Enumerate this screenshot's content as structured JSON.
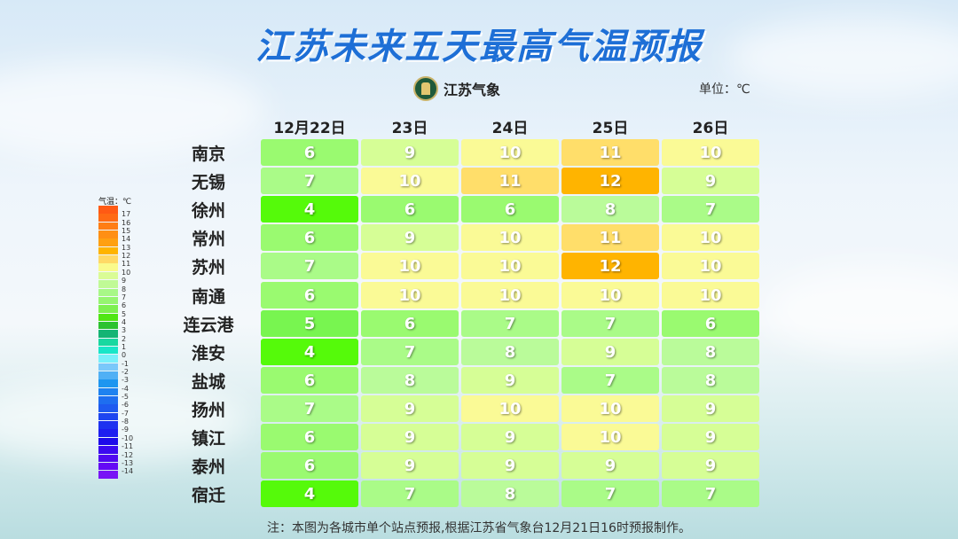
{
  "title": "江苏未来五天最高气温预报",
  "logo_text": "江苏气象",
  "unit_label": "单位：℃",
  "footnote": "注：本图为各城市单个站点预报,根据江苏省气象台12月21日16时预报制作。",
  "legend": {
    "title": "气温：℃",
    "labels": [
      "17",
      "16",
      "15",
      "14",
      "13",
      "12",
      "11",
      "10",
      "9",
      "8",
      "7",
      "6",
      "5",
      "4",
      "3",
      "2",
      "1",
      "0",
      "-1",
      "-2",
      "-3",
      "-4",
      "-5",
      "-6",
      "-7",
      "-8",
      "-9",
      "-10",
      "-11",
      "-12",
      "-13",
      "-14"
    ],
    "colors": [
      "#ff5a14",
      "#ff6a14",
      "#ff7d14",
      "#ff8f14",
      "#ffa010",
      "#ffb400",
      "#ffd966",
      "#fafa8c",
      "#dafc96",
      "#c0fa96",
      "#a8f887",
      "#96f570",
      "#7ef050",
      "#50e614",
      "#2cc230",
      "#14b474",
      "#18d8a0",
      "#18e6c8",
      "#78f0fa",
      "#7ac8fa",
      "#50b0f5",
      "#1e96f0",
      "#1e82f0",
      "#1e6ef0",
      "#1e5af0",
      "#1e46f0",
      "#1e32f0",
      "#1e1ef0",
      "#1e0aea",
      "#3c0af0",
      "#500af0",
      "#640af5",
      "#7814f5"
    ]
  },
  "chart_data": {
    "type": "table",
    "title": "江苏未来五天最高气温预报",
    "columns": [
      "12月22日",
      "23日",
      "24日",
      "25日",
      "26日"
    ],
    "rows": [
      {
        "city": "南京",
        "values": [
          6,
          9,
          10,
          11,
          10
        ]
      },
      {
        "city": "无锡",
        "values": [
          7,
          10,
          11,
          12,
          9
        ]
      },
      {
        "city": "徐州",
        "values": [
          4,
          6,
          6,
          8,
          7
        ]
      },
      {
        "city": "常州",
        "values": [
          6,
          9,
          10,
          11,
          10
        ]
      },
      {
        "city": "苏州",
        "values": [
          7,
          10,
          10,
          12,
          10
        ]
      },
      {
        "city": "南通",
        "values": [
          6,
          10,
          10,
          10,
          10
        ]
      },
      {
        "city": "连云港",
        "values": [
          5,
          6,
          7,
          7,
          6
        ]
      },
      {
        "city": "淮安",
        "values": [
          4,
          7,
          8,
          9,
          8
        ]
      },
      {
        "city": "盐城",
        "values": [
          6,
          8,
          9,
          7,
          8
        ]
      },
      {
        "city": "扬州",
        "values": [
          7,
          9,
          10,
          10,
          9
        ]
      },
      {
        "city": "镇江",
        "values": [
          6,
          9,
          9,
          10,
          9
        ]
      },
      {
        "city": "泰州",
        "values": [
          6,
          9,
          9,
          9,
          9
        ]
      },
      {
        "city": "宿迁",
        "values": [
          4,
          7,
          8,
          7,
          7
        ]
      }
    ],
    "value_colors": {
      "4": "#55fa0a",
      "5": "#78f550",
      "6": "#9afa70",
      "7": "#aafb88",
      "8": "#bafb9a",
      "9": "#d6fe96",
      "10": "#fafa96",
      "11": "#ffde6a",
      "12": "#ffb400"
    }
  }
}
